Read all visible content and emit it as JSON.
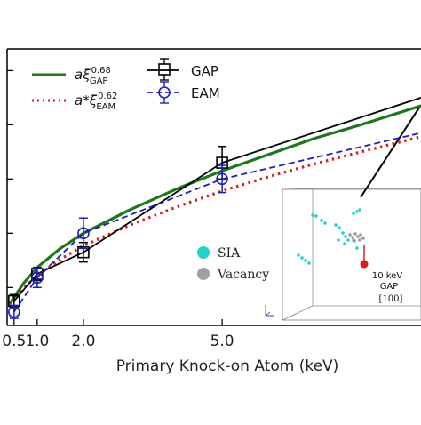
{
  "chart_data": {
    "type": "line",
    "xlabel": "Primary Knock-on Atom (keV)",
    "ylabel": "",
    "xlim": [
      0.35,
      9.3
    ],
    "ylim": [
      0.8,
      5.9
    ],
    "xticks": [
      0.5,
      1.0,
      2.0,
      5.0
    ],
    "xtick_labels": [
      "0.5",
      "1.0",
      "2.0",
      "5.0"
    ],
    "ytick_positions": [
      1.5,
      2.5,
      3.5,
      4.5,
      5.5
    ],
    "legend_position": "top-left",
    "legend": [
      {
        "kind": "fit",
        "text": "aξGAP^0.68",
        "base": "aξ",
        "sub": "GAP",
        "sup": "0.68",
        "color": "#1a7a1a",
        "style": "solid"
      },
      {
        "kind": "fit",
        "text": "a*ξEAM^0.62",
        "base": "a*ξ",
        "sub": "EAM",
        "sup": "0.62",
        "color": "#d42020",
        "style": "dotted"
      },
      {
        "kind": "data",
        "text": "GAP",
        "color": "#000000",
        "style": "solid",
        "marker": "square"
      },
      {
        "kind": "data",
        "text": "EAM",
        "color": "#1c1cc0",
        "style": "dashed",
        "marker": "circle"
      }
    ],
    "series": [
      {
        "name": "GAP",
        "color": "#000000",
        "style": "solid",
        "marker": "square",
        "x": [
          0.5,
          1.0,
          2.0,
          5.0,
          9.3
        ],
        "y": [
          1.25,
          1.75,
          2.15,
          3.8,
          5.0
        ],
        "err": [
          0.12,
          0.12,
          0.18,
          0.3,
          0
        ]
      },
      {
        "name": "EAM",
        "color": "#1c1cc0",
        "style": "dashed",
        "marker": "circle",
        "x": [
          0.5,
          1.0,
          2.0,
          5.0,
          9.3
        ],
        "y": [
          1.05,
          1.68,
          2.5,
          3.5,
          4.35
        ],
        "err": [
          0.12,
          0.18,
          0.28,
          0.25,
          0
        ]
      },
      {
        "name": "aξGAP^0.68",
        "color": "#1a7a1a",
        "style": "solid",
        "x": [
          0.4,
          0.7,
          1.0,
          1.5,
          2.0,
          3.0,
          4.0,
          5.0,
          6.0,
          7.0,
          8.0,
          9.3
        ],
        "y": [
          1.19,
          1.57,
          1.87,
          2.22,
          2.5,
          2.93,
          3.31,
          3.65,
          3.95,
          4.25,
          4.5,
          4.85
        ]
      },
      {
        "name": "a*ξEAM^0.62",
        "color": "#d42020",
        "style": "dotted",
        "x": [
          0.4,
          0.7,
          1.0,
          1.5,
          2.0,
          3.0,
          4.0,
          5.0,
          6.0,
          7.0,
          8.0,
          9.3
        ],
        "y": [
          1.14,
          1.48,
          1.72,
          2.02,
          2.27,
          2.65,
          2.98,
          3.28,
          3.54,
          3.78,
          4.0,
          4.28
        ]
      }
    ]
  },
  "inset": {
    "label_energy": "10 keV",
    "label_potential": "GAP",
    "label_direction": "[100]",
    "marker_legend": [
      {
        "text": "SIA",
        "color": "#22d3cc"
      },
      {
        "text": "Vacancy",
        "color": "#a0a0a0"
      }
    ]
  }
}
